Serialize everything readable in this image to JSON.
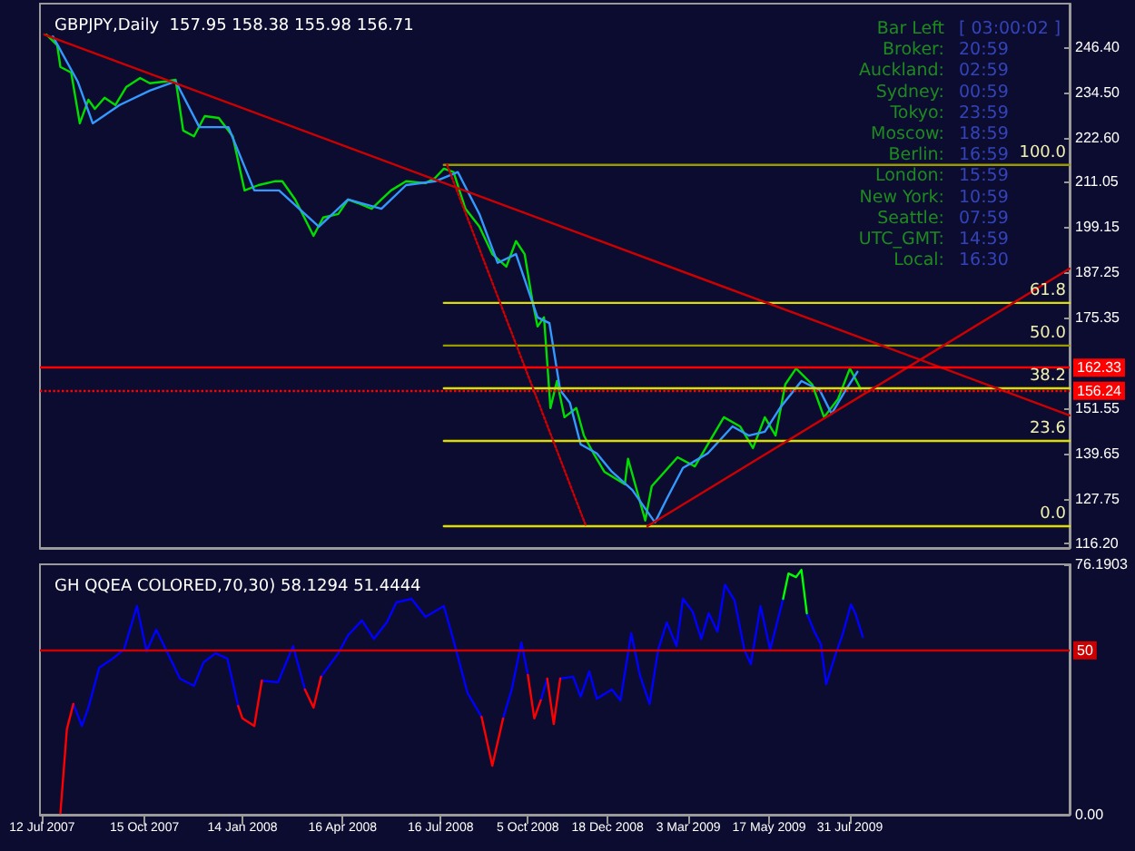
{
  "chart_data": [
    {
      "type": "line",
      "title": "GBPJPY,Daily  157.95 158.38 155.98 156.71",
      "xlim": [
        "2007-07-10",
        "2010-02-20"
      ],
      "ylim": [
        115,
        257.8
      ],
      "yticks": [
        {
          "value": 246.4,
          "label": "246.40"
        },
        {
          "value": 234.5,
          "label": "234.50"
        },
        {
          "value": 222.6,
          "label": "222.60"
        },
        {
          "value": 211.05,
          "label": "211.05"
        },
        {
          "value": 199.15,
          "label": "199.15"
        },
        {
          "value": 187.25,
          "label": "187.25"
        },
        {
          "value": 175.35,
          "label": "175.35"
        },
        {
          "value": 151.55,
          "label": "151.55"
        },
        {
          "value": 139.65,
          "label": "139.65"
        },
        {
          "value": 127.75,
          "label": "127.75"
        },
        {
          "value": 116.2,
          "label": "116.20"
        }
      ],
      "tick_labels": "y",
      "series": [
        {
          "color": "#00dd00",
          "x": [
            "2007-07-16",
            "2007-07-26",
            "2007-07-29",
            "2007-08-08",
            "2007-08-16",
            "2007-08-24",
            "2007-08-30",
            "2007-09-08",
            "2007-09-18",
            "2007-09-28",
            "2007-10-11",
            "2007-10-20",
            "2007-11-04",
            "2007-11-13",
            "2007-11-20",
            "2007-11-30",
            "2007-12-10",
            "2007-12-23",
            "2008-01-05",
            "2008-01-16",
            "2008-01-29",
            "2008-02-13",
            "2008-02-20",
            "2008-03-03",
            "2008-03-20",
            "2008-03-29",
            "2008-04-12",
            "2008-04-21",
            "2008-04-30",
            "2008-05-13",
            "2008-05-22",
            "2008-05-31",
            "2008-06-14",
            "2008-07-02",
            "2008-07-11",
            "2008-07-19",
            "2008-07-28",
            "2008-08-08",
            "2008-08-21",
            "2008-09-02",
            "2008-09-15",
            "2008-09-24",
            "2008-10-02",
            "2008-10-09",
            "2008-10-14",
            "2008-10-20",
            "2008-10-26",
            "2008-11-01",
            "2008-11-08",
            "2008-11-19",
            "2008-11-26",
            "2008-12-05",
            "2008-12-15",
            "2009-01-03",
            "2009-01-06",
            "2009-01-22",
            "2009-01-28",
            "2009-02-21",
            "2009-03-09",
            "2009-04-05",
            "2009-04-20",
            "2009-05-02",
            "2009-05-13",
            "2009-05-23",
            "2009-06-01",
            "2009-06-11",
            "2009-06-26",
            "2009-07-07",
            "2009-07-20",
            "2009-07-31",
            "2009-08-10"
          ],
          "values": [
            249.7,
            246.9,
            241.2,
            239.7,
            226.4,
            232.6,
            230.2,
            233.1,
            231.2,
            235.9,
            238.3,
            236.9,
            237.4,
            237.8,
            224.5,
            223.0,
            228.3,
            227.8,
            223.0,
            208.8,
            210.2,
            211.2,
            211.2,
            206.4,
            196.9,
            201.7,
            202.6,
            206.4,
            205.5,
            204.0,
            206.4,
            208.8,
            211.2,
            210.7,
            212.1,
            214.5,
            213.6,
            204.0,
            199.3,
            192.1,
            188.8,
            195.5,
            192.1,
            180.2,
            173.1,
            175.5,
            151.7,
            158.8,
            149.3,
            151.7,
            144.5,
            139.8,
            135.0,
            131.7,
            138.4,
            122.2,
            131.2,
            138.8,
            136.4,
            149.3,
            146.9,
            141.2,
            149.3,
            144.5,
            157.9,
            162.1,
            157.9,
            149.3,
            154.1,
            162.1,
            156.7
          ]
        },
        {
          "color": "#3399ff",
          "x": [
            "2007-07-22",
            "2007-08-14",
            "2007-08-28",
            "2007-09-22",
            "2007-10-20",
            "2007-11-13",
            "2007-12-05",
            "2008-01-01",
            "2008-01-25",
            "2008-02-17",
            "2008-03-25",
            "2008-04-21",
            "2008-05-22",
            "2008-06-14",
            "2008-07-11",
            "2008-08-01",
            "2008-08-21",
            "2008-09-07",
            "2008-09-24",
            "2008-10-14",
            "2008-10-25",
            "2008-11-04",
            "2008-11-13",
            "2008-11-23",
            "2008-12-08",
            "2008-12-22",
            "2009-01-10",
            "2009-01-31",
            "2009-02-11",
            "2009-02-26",
            "2009-03-21",
            "2009-04-13",
            "2009-04-28",
            "2009-05-13",
            "2009-05-27",
            "2009-06-16",
            "2009-07-03",
            "2009-07-14",
            "2009-07-27",
            "2009-08-07"
          ],
          "values": [
            249.2,
            237.4,
            226.4,
            231.2,
            235.0,
            237.4,
            225.4,
            225.4,
            208.8,
            208.8,
            199.3,
            206.4,
            204.0,
            210.2,
            211.2,
            213.6,
            202.6,
            189.8,
            192.1,
            175.5,
            174.0,
            156.4,
            153.1,
            142.2,
            139.8,
            135.0,
            130.2,
            121.7,
            127.9,
            136.0,
            139.8,
            146.9,
            144.5,
            145.5,
            151.7,
            158.8,
            156.4,
            150.2,
            156.4,
            161.2
          ]
        },
        {
          "color": "#999900",
          "x": [
            "2008-07-19",
            "2010-02-20"
          ],
          "values": [
            215.5,
            215.5
          ]
        },
        {
          "color": "#dddd00",
          "x": [
            "2008-07-19",
            "2010-02-20"
          ],
          "values": [
            179.3,
            179.3
          ]
        },
        {
          "color": "#999900",
          "x": [
            "2008-07-19",
            "2010-02-20"
          ],
          "values": [
            168.1,
            168.1
          ]
        },
        {
          "color": "#dddd00",
          "x": [
            "2008-07-19",
            "2010-02-20"
          ],
          "values": [
            156.9,
            156.9
          ]
        },
        {
          "color": "#dddd00",
          "x": [
            "2008-07-19",
            "2010-02-20"
          ],
          "values": [
            143.1,
            143.1
          ]
        },
        {
          "color": "#dddd00",
          "x": [
            "2008-07-19",
            "2010-02-20"
          ],
          "values": [
            120.7,
            120.7
          ]
        },
        {
          "color": "#cc0000",
          "x": [
            "2007-07-14",
            "2010-02-20"
          ],
          "values": [
            249.7,
            149.8
          ]
        },
        {
          "color": "#cc0000",
          "x": [
            "2009-01-24",
            "2010-02-20"
          ],
          "values": [
            120.7,
            188.3
          ]
        },
        {
          "color": "#cc0000",
          "line_style": "dotted",
          "x": [
            "2008-07-22",
            "2008-11-28"
          ],
          "values": [
            215.5,
            120.7
          ]
        }
      ],
      "ref_lines": [
        {
          "axis": "y",
          "value": 162.33,
          "label": "162.33",
          "color": "#ff0000",
          "line_style": "solid"
        },
        {
          "axis": "y",
          "value": 156.24,
          "label": "156.24",
          "color": "#ff0000",
          "line_style": "dotted"
        }
      ],
      "annotations": [
        "Bar Left",
        "[ 03:00:02 ]",
        "Broker:",
        "20:59",
        "Auckland:",
        "02:59",
        "Sydney:",
        "00:59",
        "Tokyo:",
        "23:59",
        "Moscow:",
        "18:59",
        "Berlin:",
        "16:59",
        "London:",
        "15:59",
        "New York:",
        "10:59",
        "Seattle:",
        "07:59",
        "UTC_GMT:",
        "14:59",
        "Local:",
        "16:30",
        {
          "text": "100.0",
          "x": "2010-02-20",
          "y": 215.5
        },
        {
          "text": "61.8",
          "x": "2010-02-20",
          "y": 179.3
        },
        {
          "text": "50.0",
          "x": "2010-02-20",
          "y": 168.1
        },
        {
          "text": "38.2",
          "x": "2010-02-20",
          "y": 156.9
        },
        {
          "text": "23.6",
          "x": "2010-02-20",
          "y": 143.1
        },
        {
          "text": "0.0",
          "x": "2010-02-20",
          "y": 120.7
        }
      ]
    },
    {
      "type": "line",
      "title": "GH QQEA COLORED,70,30) 58.1294 51.4444",
      "xlim": [
        "2007-07-10",
        "2010-02-20"
      ],
      "xticks": [
        {
          "value": "2007-07-12",
          "label": "12 Jul 2007"
        },
        {
          "value": "2007-10-15",
          "label": "15 Oct 2007"
        },
        {
          "value": "2008-01-14",
          "label": "14 Jan 2008"
        },
        {
          "value": "2008-04-16",
          "label": "16 Apr 2008"
        },
        {
          "value": "2008-07-16",
          "label": "16 Jul 2008"
        },
        {
          "value": "2008-10-05",
          "label": "5 Oct 2008"
        },
        {
          "value": "2008-12-18",
          "label": "18 Dec 2008"
        },
        {
          "value": "2009-03-03",
          "label": "3 Mar 2009"
        },
        {
          "value": "2009-05-17",
          "label": "17 May 2009"
        },
        {
          "value": "2009-07-31",
          "label": "31 Jul 2009"
        }
      ],
      "ylim": [
        0,
        76.1903
      ],
      "yticks": [
        {
          "value": 76.1903,
          "label": "76.1903"
        },
        {
          "value": 0,
          "label": "0.00"
        }
      ],
      "series": [
        {
          "color": "#0000ff",
          "x": [
            "2007-08-10",
            "2007-08-18",
            "2007-08-24",
            "2007-09-03",
            "2007-09-13",
            "2007-09-26",
            "2007-10-08",
            "2007-10-17",
            "2007-10-26",
            "2007-11-17",
            "2007-11-30",
            "2007-12-09",
            "2007-12-20",
            "2007-12-31",
            "2008-01-10",
            "2008-01-14",
            "2008-01-25",
            "2008-02-01",
            "2008-02-16",
            "2008-03-01",
            "2008-03-12",
            "2008-03-20",
            "2008-03-27",
            "2008-04-12",
            "2008-04-21",
            "2008-05-04",
            "2008-05-15",
            "2008-05-27",
            "2008-06-05",
            "2008-06-19",
            "2008-07-02",
            "2008-07-19",
            "2008-07-28",
            "2008-08-10",
            "2008-08-23",
            "2008-09-02",
            "2008-09-12",
            "2008-09-20",
            "2008-09-29",
            "2008-10-05",
            "2008-10-11",
            "2008-10-17",
            "2008-10-23",
            "2008-10-29",
            "2008-11-04",
            "2008-11-16",
            "2008-11-23",
            "2008-12-01",
            "2008-12-08",
            "2008-12-22",
            "2008-12-30",
            "2009-01-09",
            "2009-01-17",
            "2009-01-26",
            "2009-02-03",
            "2009-02-11",
            "2009-02-20",
            "2009-02-26",
            "2009-03-07",
            "2009-03-15",
            "2009-03-22",
            "2009-03-30",
            "2009-04-06",
            "2009-04-15",
            "2009-04-24",
            "2009-04-30",
            "2009-05-09",
            "2009-05-18",
            "2009-05-30",
            "2009-06-04",
            "2009-06-11",
            "2009-06-16",
            "2009-06-21",
            "2009-06-28",
            "2009-07-04",
            "2009-07-09",
            "2009-07-18",
            "2009-07-24",
            "2009-08-01",
            "2009-08-05",
            "2009-08-12"
          ],
          "values": [
            33.7,
            27,
            32.6,
            44.7,
            46.9,
            50.2,
            63.5,
            49.7,
            56.3,
            41.4,
            39.2,
            46.4,
            49.1,
            47.5,
            33.1,
            null,
            null,
            40.8,
            40.3,
            51.3,
            38.1,
            null,
            42,
            49.1,
            54.6,
            59.1,
            53.5,
            58.5,
            64.6,
            65.7,
            60.2,
            63.5,
            53,
            37,
            29.8,
            null,
            29.3,
            38.1,
            52.4,
            42.5,
            null,
            34.8,
            41.4,
            null,
            41.4,
            42,
            35.9,
            43.6,
            35.3,
            38.1,
            34.8,
            55.2,
            42.5,
            33.7,
            50.2,
            58.5,
            51.3,
            65.7,
            61.8,
            53.5,
            61.3,
            55.7,
            70,
            65.1,
            50.2,
            45.8,
            63.5,
            50.2,
            65.7,
            null,
            null,
            null,
            61.3,
            55.7,
            51.9,
            39.7,
            49.1,
            54.6,
            64,
            61.3,
            54.1
          ]
        },
        {
          "color": "#ff0000",
          "x": [
            "2007-07-29",
            "2007-08-04",
            "2007-08-10",
            "2007-12-01",
            "2008-01-10",
            "2008-01-14",
            "2008-01-25",
            "2008-02-01",
            "2008-03-01",
            "2008-03-12",
            "2008-03-20",
            "2008-03-27",
            "2008-06-01",
            "2008-08-23",
            "2008-09-02",
            "2008-09-12",
            "2008-09-25",
            "2008-10-05",
            "2008-10-11",
            "2008-10-17",
            "2008-10-20",
            "2008-10-23",
            "2008-10-29",
            "2008-11-04"
          ],
          "values": [
            0.5,
            26,
            33.7,
            null,
            33.1,
            29.3,
            27,
            40.8,
            null,
            38.1,
            32.6,
            42,
            null,
            29.8,
            14.9,
            29.3,
            null,
            42.5,
            29.3,
            34.8,
            null,
            41.4,
            27.6,
            41.4
          ]
        },
        {
          "color": "#00ff00",
          "x": [
            "2009-05-30",
            "2009-06-04",
            "2009-06-11",
            "2009-06-16",
            "2009-06-21"
          ],
          "values": [
            65.7,
            73.4,
            72.3,
            74.5,
            61.3
          ]
        }
      ],
      "ref_lines": [
        {
          "axis": "y",
          "value": 50,
          "label": "50",
          "color": "#cc0000",
          "line_style": "solid"
        }
      ]
    }
  ]
}
